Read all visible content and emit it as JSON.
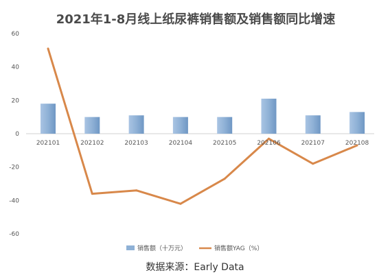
{
  "chart_data": {
    "type": "bar",
    "title": "2021年1-8月线上纸尿裤销售额及销售额同比增速",
    "categories": [
      "202101",
      "202102",
      "202103",
      "202104",
      "202105",
      "202106",
      "202107",
      "202108"
    ],
    "series": [
      {
        "name": "销售额（十万元）",
        "type": "bar",
        "values": [
          18,
          10,
          11,
          10,
          10,
          21,
          11,
          13
        ],
        "color": "#8fb1d6"
      },
      {
        "name": "销售额YAG（%）",
        "type": "line",
        "values": [
          51,
          -36,
          -34,
          -42,
          -27,
          -3,
          -18,
          -7
        ],
        "color": "#d8884a"
      }
    ],
    "ylim": [
      -60,
      60
    ],
    "yticks": [
      60,
      40,
      20,
      0,
      -20,
      -40,
      -60
    ],
    "grid": false,
    "legend": "bottom-center",
    "source": "数据来源：Early Data"
  }
}
